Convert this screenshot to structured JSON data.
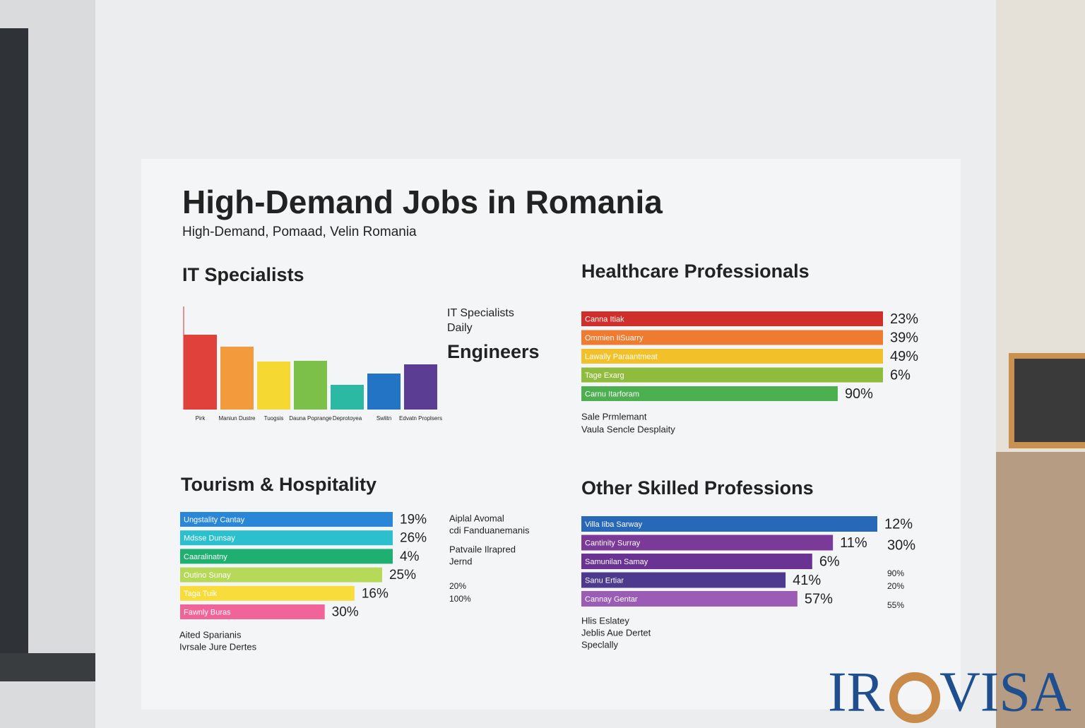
{
  "header": {
    "title": "High-Demand Jobs in Romania",
    "subtitle": "High-Demand, Pomaad, Velin Romania"
  },
  "chart_data": [
    {
      "type": "bar",
      "title": "IT Specialists",
      "categories": [
        "Pirk",
        "Maniun Dustre",
        "Tuogsis",
        "Dauna Poprange",
        "Deprotoyea",
        "Swlitn",
        "Edvatn Proplsers"
      ],
      "values": [
        106,
        89,
        68,
        69,
        35,
        51,
        64
      ],
      "colors": [
        "#e0413a",
        "#f39a3c",
        "#f5d832",
        "#7cc04a",
        "#2bb9a3",
        "#2474c6",
        "#5b3e93"
      ],
      "ylim": [
        0,
        146
      ],
      "notes": [
        "IT Specialists",
        "Daily",
        "Engineers"
      ]
    },
    {
      "type": "hbar",
      "title": "Healthcare Professionals",
      "categories": [
        "Canna Itiak",
        "Ommien IiSuarry",
        "Lawally Paraantmeat",
        "Tage Exarg",
        "Carnu Itarforam"
      ],
      "values": [
        100,
        100,
        100,
        100,
        85
      ],
      "labels": [
        "23%",
        "39%",
        "49%",
        "6%",
        "90%"
      ],
      "colors": [
        "#cf2e2a",
        "#ee7b2f",
        "#f2c12a",
        "#8fbc3c",
        "#4caf50"
      ],
      "xlim": [
        0,
        100
      ],
      "footnote": [
        "Sale Prmlemant",
        "Vaula Sencle Desplaity"
      ]
    },
    {
      "type": "hbar",
      "title": "Tourism & Hospitality",
      "categories": [
        "Ungstality Cantay",
        "Mdsse Dunsay",
        "Caaralinatny",
        "Outino Sunay",
        "Taga Tuik",
        "Fawnly Buras"
      ],
      "values": [
        100,
        100,
        100,
        95,
        82,
        68
      ],
      "labels": [
        "19%",
        "26%",
        "4%",
        "25%",
        "16%",
        "30%"
      ],
      "colors": [
        "#2a86d6",
        "#2cc0cf",
        "#1fb071",
        "#b6d95a",
        "#f8dc3c",
        "#f0649a"
      ],
      "xlim": [
        0,
        100
      ],
      "notes": [
        "Aiplal Avomal",
        "cdi Fanduanemanis",
        "Patvaile Ilrapred",
        "Jernd",
        "20%",
        "100%"
      ],
      "footnote": [
        "Aited Sparianis",
        "Ivrsale Jure Dertes"
      ]
    },
    {
      "type": "hbar",
      "title": "Other Skilled Professions",
      "categories": [
        "Villa Iiba Sarway",
        "Cantinity Surray",
        "Samunilan Samay",
        "Sanu Ertiar",
        "Cannay Gentar"
      ],
      "values": [
        100,
        85,
        78,
        69,
        73
      ],
      "labels": [
        "12%",
        "11%",
        "6%",
        "41%",
        "57%"
      ],
      "colors": [
        "#2768b8",
        "#7b3a98",
        "#6a3393",
        "#4d3a8e",
        "#9a5cb4"
      ],
      "xlim": [
        0,
        100
      ],
      "notes": [
        "30%",
        "90%",
        "20%",
        "55%"
      ],
      "footnote": [
        "Hlis Eslatey",
        "Jeblis Aue Dertet",
        "Speclally"
      ]
    }
  ],
  "logo": {
    "left": "IR",
    "right": "VISA"
  }
}
